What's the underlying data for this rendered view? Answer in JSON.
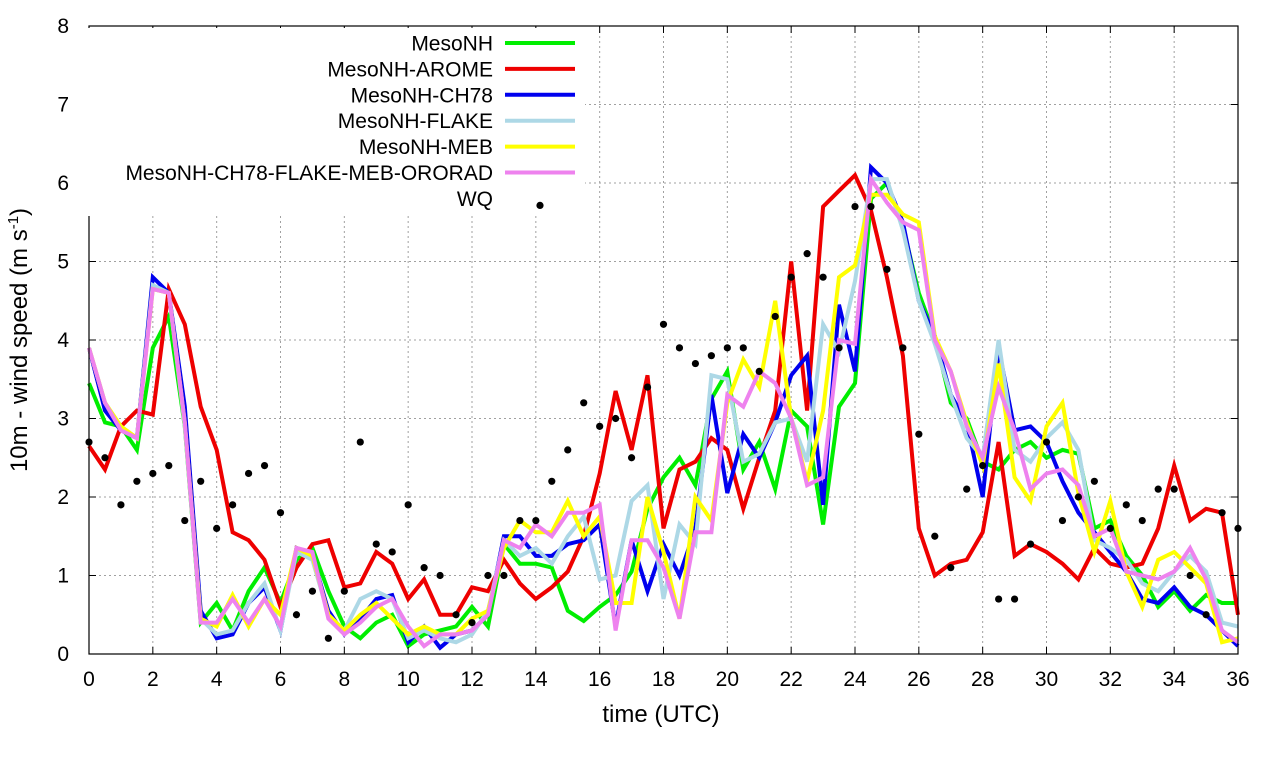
{
  "chart_data": {
    "type": "line",
    "title": "",
    "xlabel": "time (UTC)",
    "ylabel_main": "10m - wind speed  (m s",
    "ylabel_sup": "-1",
    "ylabel_close": ")",
    "xlim": [
      0,
      36
    ],
    "ylim": [
      0,
      8
    ],
    "xticks": [
      0,
      2,
      4,
      6,
      8,
      10,
      12,
      14,
      16,
      18,
      20,
      22,
      24,
      26,
      28,
      30,
      32,
      34,
      36
    ],
    "yticks": [
      0,
      1,
      2,
      3,
      4,
      5,
      6,
      7,
      8
    ],
    "grid": true,
    "legend_position": "top-left",
    "x": [
      0,
      0.5,
      1,
      1.5,
      2,
      2.5,
      3,
      3.5,
      4,
      4.5,
      5,
      5.5,
      6,
      6.5,
      7,
      7.5,
      8,
      8.5,
      9,
      9.5,
      10,
      10.5,
      11,
      11.5,
      12,
      12.5,
      13,
      13.5,
      14,
      14.5,
      15,
      15.5,
      16,
      16.5,
      17,
      17.5,
      18,
      18.5,
      19,
      19.5,
      20,
      20.5,
      21,
      21.5,
      22,
      22.5,
      23,
      23.5,
      24,
      24.5,
      25,
      25.5,
      26,
      26.5,
      27,
      27.5,
      28,
      28.5,
      29,
      29.5,
      30,
      30.5,
      31,
      31.5,
      32,
      32.5,
      33,
      33.5,
      34,
      34.5,
      35,
      35.5,
      36
    ],
    "series": [
      {
        "name": "MesoNH",
        "color": "#00ee00",
        "values": [
          3.45,
          2.95,
          2.9,
          2.6,
          3.9,
          4.3,
          2.9,
          0.4,
          0.65,
          0.3,
          0.8,
          1.1,
          0.65,
          1.2,
          1.35,
          0.8,
          0.35,
          0.2,
          0.4,
          0.5,
          0.1,
          0.25,
          0.3,
          0.35,
          0.6,
          0.35,
          1.4,
          1.15,
          1.15,
          1.1,
          0.55,
          0.42,
          0.6,
          0.75,
          1.05,
          1.85,
          2.25,
          2.5,
          2.15,
          3.25,
          3.6,
          2.35,
          2.7,
          2.1,
          3.1,
          2.9,
          1.65,
          3.15,
          3.45,
          5.8,
          6.0,
          5.45,
          4.6,
          4.05,
          3.2,
          3.0,
          2.45,
          2.35,
          2.6,
          2.7,
          2.5,
          2.6,
          2.55,
          1.6,
          1.7,
          1.25,
          1.0,
          0.6,
          0.8,
          0.55,
          0.75,
          0.65,
          0.65
        ]
      },
      {
        "name": "MesoNH-AROME",
        "color": "#ee0000",
        "values": [
          2.65,
          2.35,
          2.9,
          3.1,
          3.05,
          4.65,
          4.2,
          3.15,
          2.6,
          1.55,
          1.45,
          1.2,
          0.6,
          1.1,
          1.4,
          1.45,
          0.85,
          0.9,
          1.3,
          1.15,
          0.7,
          0.95,
          0.5,
          0.5,
          0.85,
          0.8,
          1.2,
          0.9,
          0.7,
          0.85,
          1.05,
          1.5,
          2.3,
          3.35,
          2.6,
          3.55,
          1.6,
          2.35,
          2.45,
          2.75,
          2.6,
          1.85,
          2.5,
          3.1,
          5.0,
          3.1,
          5.7,
          5.9,
          6.1,
          5.65,
          4.8,
          3.8,
          1.6,
          1.0,
          1.15,
          1.2,
          1.55,
          2.7,
          1.25,
          1.4,
          1.3,
          1.15,
          0.95,
          1.35,
          1.15,
          1.1,
          1.15,
          1.6,
          2.4,
          1.7,
          1.85,
          1.8,
          0.5
        ]
      },
      {
        "name": "MesoNH-CH78",
        "color": "#0000ee",
        "values": [
          3.9,
          3.1,
          2.85,
          2.75,
          4.8,
          4.6,
          3.15,
          0.55,
          0.2,
          0.25,
          0.65,
          0.85,
          0.3,
          1.35,
          1.25,
          0.55,
          0.25,
          0.45,
          0.7,
          0.75,
          0.15,
          0.35,
          0.08,
          0.25,
          0.3,
          0.5,
          1.5,
          1.5,
          1.25,
          1.25,
          1.4,
          1.45,
          1.65,
          0.35,
          1.45,
          0.8,
          1.4,
          1.0,
          1.6,
          3.3,
          2.05,
          2.8,
          2.5,
          2.95,
          3.55,
          3.8,
          1.9,
          4.45,
          3.6,
          6.2,
          6.0,
          5.5,
          4.5,
          4.05,
          3.3,
          2.95,
          2.0,
          3.9,
          2.85,
          2.9,
          2.7,
          2.2,
          1.8,
          1.55,
          1.3,
          1.05,
          0.7,
          0.65,
          0.85,
          0.6,
          0.5,
          0.3,
          0.1
        ]
      },
      {
        "name": "MesoNH-FLAKE",
        "color": "#add8e6",
        "values": [
          3.9,
          3.2,
          2.9,
          2.75,
          4.7,
          4.6,
          2.9,
          0.45,
          0.25,
          0.3,
          0.65,
          0.9,
          0.3,
          1.3,
          1.2,
          0.5,
          0.3,
          0.7,
          0.8,
          0.7,
          0.2,
          0.3,
          0.2,
          0.15,
          0.25,
          0.55,
          1.45,
          1.25,
          1.35,
          1.15,
          1.5,
          1.75,
          0.95,
          1.0,
          1.95,
          2.15,
          0.7,
          1.65,
          1.4,
          3.55,
          3.5,
          2.45,
          2.55,
          2.95,
          3.0,
          2.45,
          4.2,
          3.85,
          4.75,
          6.05,
          6.05,
          5.4,
          4.5,
          3.95,
          3.3,
          2.75,
          2.5,
          4.0,
          2.6,
          2.45,
          2.75,
          2.95,
          2.6,
          1.45,
          1.35,
          1.2,
          0.9,
          0.8,
          1.05,
          1.25,
          1.05,
          0.4,
          0.35
        ]
      },
      {
        "name": "MesoNH-MEB",
        "color": "#ffff00",
        "values": [
          3.9,
          3.2,
          2.9,
          2.75,
          4.65,
          4.6,
          2.95,
          0.45,
          0.35,
          0.75,
          0.35,
          0.7,
          0.5,
          1.35,
          1.25,
          0.5,
          0.3,
          0.5,
          0.65,
          0.45,
          0.25,
          0.35,
          0.25,
          0.25,
          0.45,
          0.55,
          1.35,
          1.7,
          1.55,
          1.55,
          1.95,
          1.5,
          1.75,
          0.65,
          0.65,
          2.0,
          1.3,
          0.45,
          2.0,
          1.7,
          3.2,
          3.75,
          3.4,
          4.5,
          3.0,
          2.2,
          3.1,
          4.8,
          4.95,
          5.85,
          5.85,
          5.6,
          5.5,
          4.05,
          3.6,
          2.95,
          2.4,
          3.7,
          2.25,
          1.95,
          2.9,
          3.2,
          2.05,
          1.3,
          1.95,
          1.05,
          0.6,
          1.2,
          1.3,
          1.1,
          0.9,
          0.15,
          0.2
        ]
      },
      {
        "name": "MesoNH-CH78-FLAKE-MEB-ORORAD",
        "color": "#ee82ee",
        "values": [
          3.9,
          3.2,
          2.85,
          2.75,
          4.65,
          4.6,
          2.95,
          0.4,
          0.4,
          0.7,
          0.4,
          0.7,
          0.35,
          1.35,
          1.3,
          0.45,
          0.25,
          0.4,
          0.6,
          0.7,
          0.35,
          0.1,
          0.25,
          0.25,
          0.3,
          0.5,
          1.45,
          1.35,
          1.65,
          1.5,
          1.8,
          1.8,
          1.9,
          0.3,
          1.45,
          1.45,
          1.1,
          0.45,
          1.55,
          1.55,
          3.3,
          3.15,
          3.6,
          3.45,
          3.0,
          2.15,
          2.25,
          4.0,
          3.95,
          6.05,
          5.75,
          5.5,
          5.4,
          4.0,
          3.6,
          2.9,
          2.5,
          3.4,
          2.85,
          2.1,
          2.3,
          2.35,
          2.15,
          1.5,
          1.6,
          1.05,
          1.0,
          0.95,
          1.05,
          1.35,
          0.95,
          0.3,
          0.15
        ]
      }
    ],
    "observations": {
      "name": "WQ",
      "color": "#000000",
      "points": [
        [
          0,
          2.7
        ],
        [
          0.5,
          2.5
        ],
        [
          1,
          1.9
        ],
        [
          1.5,
          2.2
        ],
        [
          2,
          2.3
        ],
        [
          2.5,
          2.4
        ],
        [
          3,
          1.7
        ],
        [
          3.5,
          2.2
        ],
        [
          4,
          1.6
        ],
        [
          4.5,
          1.9
        ],
        [
          5,
          2.3
        ],
        [
          5.5,
          2.4
        ],
        [
          6,
          1.8
        ],
        [
          6.5,
          0.5
        ],
        [
          7,
          0.8
        ],
        [
          7.5,
          0.2
        ],
        [
          8,
          0.8
        ],
        [
          8.5,
          2.7
        ],
        [
          9,
          1.4
        ],
        [
          9.5,
          1.3
        ],
        [
          10,
          1.9
        ],
        [
          10.5,
          1.1
        ],
        [
          11,
          1.0
        ],
        [
          11.5,
          0.5
        ],
        [
          12,
          0.4
        ],
        [
          12.5,
          1.0
        ],
        [
          13,
          1.0
        ],
        [
          13.5,
          1.7
        ],
        [
          14,
          1.7
        ],
        [
          14.5,
          2.2
        ],
        [
          15,
          2.6
        ],
        [
          15.5,
          3.2
        ],
        [
          16,
          2.9
        ],
        [
          16.5,
          3.0
        ],
        [
          17,
          2.5
        ],
        [
          17.5,
          3.4
        ],
        [
          18,
          4.2
        ],
        [
          18.5,
          3.9
        ],
        [
          19,
          3.7
        ],
        [
          19.5,
          3.8
        ],
        [
          20,
          3.9
        ],
        [
          20.5,
          3.9
        ],
        [
          21,
          3.6
        ],
        [
          21.5,
          4.3
        ],
        [
          22,
          4.8
        ],
        [
          22.5,
          5.1
        ],
        [
          23,
          4.8
        ],
        [
          23.5,
          3.9
        ],
        [
          24,
          5.7
        ],
        [
          24.5,
          5.7
        ],
        [
          25,
          4.9
        ],
        [
          25.5,
          3.9
        ],
        [
          26,
          2.8
        ],
        [
          26.5,
          1.5
        ],
        [
          27,
          1.1
        ],
        [
          27.5,
          2.1
        ],
        [
          28,
          2.4
        ],
        [
          28.5,
          0.7
        ],
        [
          29,
          0.7
        ],
        [
          29.5,
          1.4
        ],
        [
          30,
          2.7
        ],
        [
          30.5,
          1.7
        ],
        [
          31,
          2.0
        ],
        [
          31.5,
          2.2
        ],
        [
          32,
          1.6
        ],
        [
          32.5,
          1.9
        ],
        [
          33,
          1.7
        ],
        [
          33.5,
          2.1
        ],
        [
          34,
          2.1
        ],
        [
          34.5,
          1.0
        ],
        [
          35,
          0.5
        ],
        [
          35.5,
          1.8
        ],
        [
          36,
          1.6
        ]
      ]
    }
  }
}
